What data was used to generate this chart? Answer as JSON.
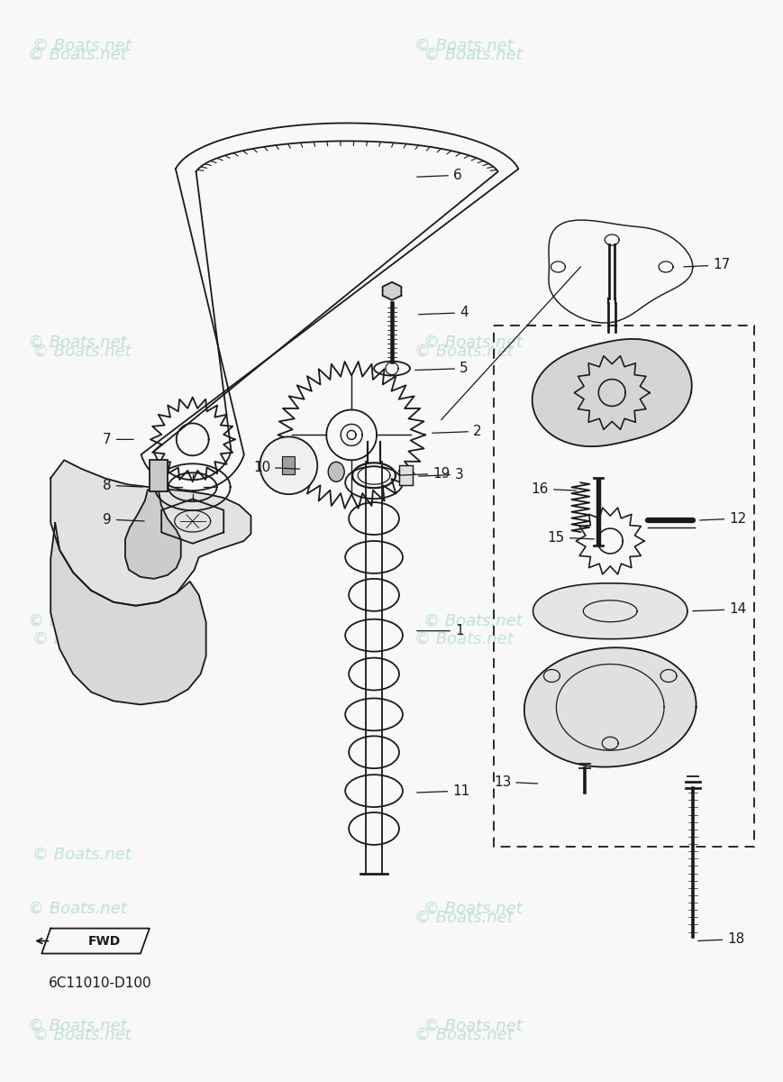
{
  "bg_color": "#f8f8f8",
  "watermark_color": "#b8ddd6",
  "watermark_text": "© Boats.net",
  "diagram_code": "6C11010-D100",
  "line_color": "#1a1a1a",
  "title_color": "#1a1a1a"
}
